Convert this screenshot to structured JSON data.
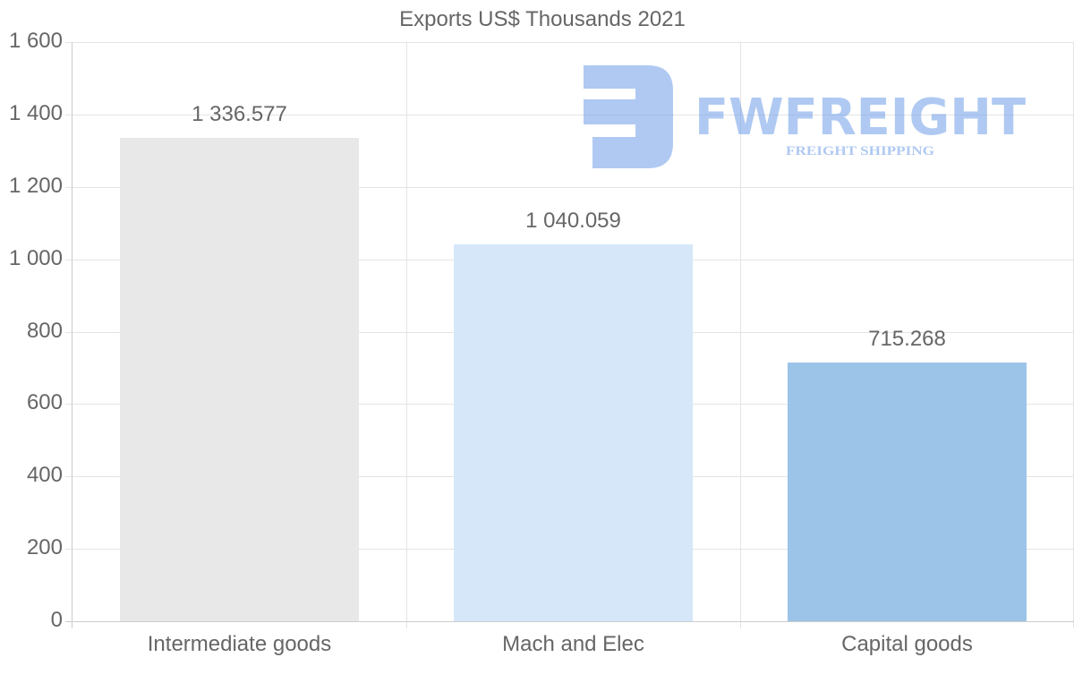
{
  "chart_data": {
    "type": "bar",
    "title": "Exports US$ Thousands 2021",
    "xlabel": "",
    "ylabel": "",
    "categories": [
      "Intermediate goods",
      "Mach and Elec",
      "Capital goods"
    ],
    "values": [
      1336.577,
      1040.059,
      715.268
    ],
    "value_labels": [
      "1 336.577",
      "1 040.059",
      "715.268"
    ],
    "bar_colors": [
      "#e8e8e8",
      "#d6e7f9",
      "#9cc4e8"
    ],
    "ylim": [
      0,
      1600
    ],
    "yticks": [
      0,
      200,
      400,
      600,
      800,
      1000,
      1200,
      1400,
      1600
    ],
    "ytick_labels": [
      "0",
      "200",
      "400",
      "600",
      "800",
      "1 000",
      "1 200",
      "1 400",
      "1 600"
    ],
    "grid": true,
    "legend": "none"
  },
  "watermark": {
    "brand": "FWFREIGHT",
    "tagline": "FREIGHT SHIPPING",
    "color": "#6f9ee8"
  }
}
